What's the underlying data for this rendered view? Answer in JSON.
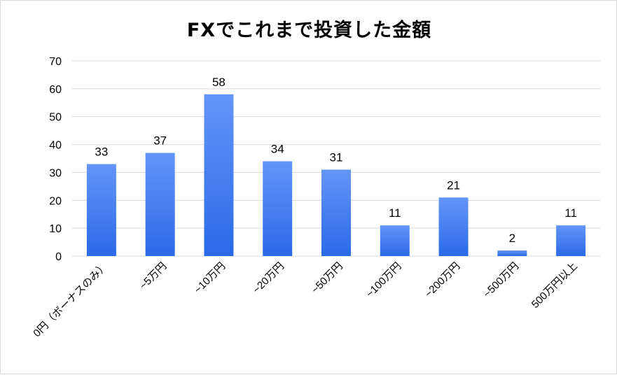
{
  "chart_data": {
    "type": "bar",
    "title": "FXでこれまで投資した金額",
    "categories": [
      "0円（ボーナスのみ）",
      "~5万円",
      "~10万円",
      "~20万円",
      "~50万円",
      "~100万円",
      "~200万円",
      "~500万円",
      "500万円以上"
    ],
    "values": [
      33,
      37,
      58,
      34,
      31,
      11,
      21,
      2,
      11
    ],
    "ylim": [
      0,
      70
    ],
    "yticks": [
      0,
      10,
      20,
      30,
      40,
      50,
      60,
      70
    ],
    "grid": true,
    "xlabel": "",
    "ylabel": "",
    "bar_color_top": "#6495f7",
    "bar_color_bottom": "#2a6ae8",
    "grid_color": "#d9d9d9"
  }
}
